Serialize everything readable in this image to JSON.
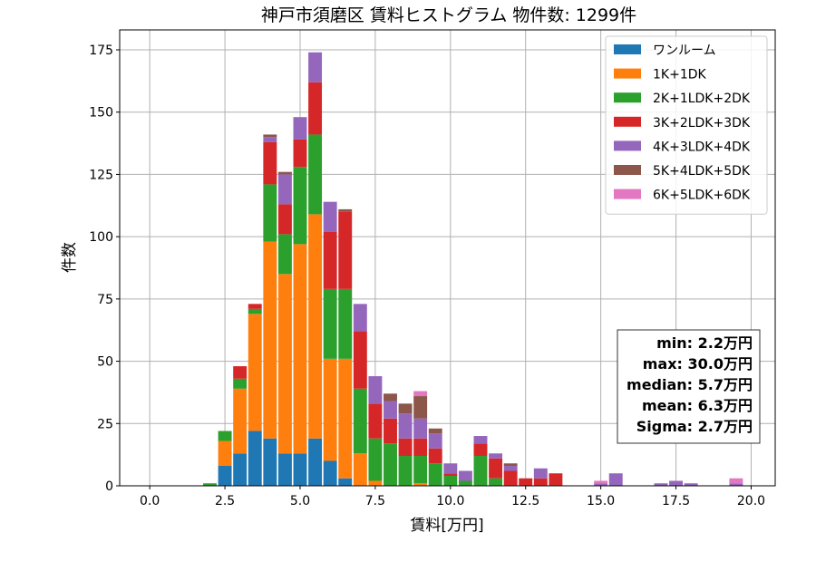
{
  "chart_data": {
    "type": "bar",
    "stacked": true,
    "title": "神戸市須磨区 賃料ヒストグラム 物件数: 1299件",
    "xlabel": "賃料[万円]",
    "ylabel": "件数",
    "xlim": [
      -1.0,
      20.8
    ],
    "ylim": [
      0,
      183
    ],
    "xticks": [
      0.0,
      2.5,
      5.0,
      7.5,
      10.0,
      12.5,
      15.0,
      17.5,
      20.0
    ],
    "xtick_labels": [
      "0.0",
      "2.5",
      "5.0",
      "7.5",
      "10.0",
      "12.5",
      "15.0",
      "17.5",
      "20.0"
    ],
    "yticks": [
      0,
      25,
      50,
      75,
      100,
      125,
      150,
      175
    ],
    "ytick_labels": [
      "0",
      "25",
      "50",
      "75",
      "100",
      "125",
      "150",
      "175"
    ],
    "grid": true,
    "legend_position": "top-right",
    "bin_width": 0.5,
    "bin_centers": [
      2.0,
      2.5,
      3.0,
      3.5,
      4.0,
      4.5,
      5.0,
      5.5,
      6.0,
      6.5,
      7.0,
      7.5,
      8.0,
      8.5,
      9.0,
      9.5,
      10.0,
      10.5,
      11.0,
      11.5,
      12.0,
      12.5,
      13.0,
      13.5,
      15.0,
      15.5,
      17.0,
      17.5,
      18.0,
      19.5
    ],
    "series": [
      {
        "name": "ワンルーム",
        "color": "#1f77b4",
        "values": [
          0,
          8,
          13,
          22,
          19,
          13,
          13,
          19,
          10,
          3,
          0,
          0,
          0,
          0,
          0,
          0,
          0,
          0,
          0,
          0,
          0,
          0,
          0,
          0,
          0,
          0,
          0,
          0,
          0,
          0
        ]
      },
      {
        "name": "1K+1DK",
        "color": "#ff7f0e",
        "values": [
          0,
          10,
          26,
          47,
          79,
          72,
          84,
          90,
          41,
          48,
          13,
          2,
          0,
          0,
          1,
          0,
          0,
          0,
          0,
          0,
          0,
          0,
          0,
          0,
          0,
          0,
          0,
          0,
          0,
          0
        ]
      },
      {
        "name": "2K+1LDK+2DK",
        "color": "#2ca02c",
        "values": [
          1,
          4,
          4,
          2,
          23,
          16,
          31,
          32,
          28,
          28,
          26,
          17,
          17,
          12,
          11,
          9,
          4,
          2,
          12,
          3,
          0,
          0,
          0,
          0,
          0,
          0,
          0,
          0,
          0,
          0
        ]
      },
      {
        "name": "3K+2LDK+3DK",
        "color": "#d62728",
        "values": [
          0,
          0,
          5,
          2,
          17,
          12,
          11,
          21,
          23,
          31,
          23,
          14,
          10,
          7,
          7,
          6,
          1,
          0,
          5,
          8,
          6,
          3,
          3,
          5,
          0,
          0,
          0,
          0,
          0,
          0
        ]
      },
      {
        "name": "4K+3LDK+4DK",
        "color": "#9467bd",
        "values": [
          0,
          0,
          0,
          0,
          2,
          12,
          9,
          12,
          12,
          0,
          11,
          11,
          7,
          10,
          8,
          6,
          4,
          4,
          3,
          2,
          2,
          0,
          4,
          0,
          1,
          5,
          1,
          2,
          1,
          1
        ]
      },
      {
        "name": "5K+4LDK+5DK",
        "color": "#8c564b",
        "values": [
          0,
          0,
          0,
          0,
          1,
          1,
          0,
          0,
          0,
          1,
          0,
          0,
          3,
          4,
          9,
          2,
          0,
          0,
          0,
          0,
          1,
          0,
          0,
          0,
          0,
          0,
          0,
          0,
          0,
          0
        ]
      },
      {
        "name": "6K+5LDK+6DK",
        "color": "#e377c2",
        "values": [
          0,
          0,
          0,
          0,
          0,
          0,
          0,
          0,
          0,
          0,
          0,
          0,
          0,
          0,
          2,
          0,
          0,
          0,
          0,
          0,
          0,
          0,
          0,
          0,
          1,
          0,
          0,
          0,
          0,
          2
        ]
      }
    ],
    "stats_box": {
      "lines": [
        "min: 2.2万円",
        "max: 30.0万円",
        "median: 5.7万円",
        "mean: 6.3万円",
        "Sigma: 2.7万円"
      ],
      "position": "bottom-right"
    }
  }
}
